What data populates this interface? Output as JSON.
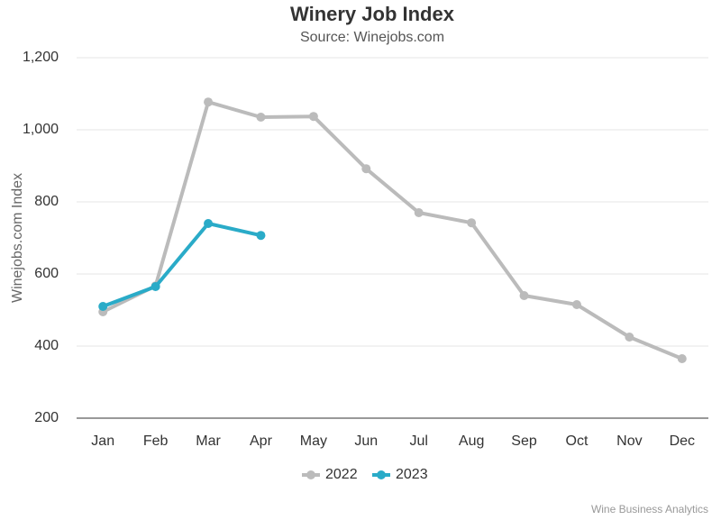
{
  "chart_data": {
    "type": "line",
    "title": "Winery Job Index",
    "subtitle": "Source: Winejobs.com",
    "y_label": "Winejobs.com Index",
    "credits": "Wine Business Analytics",
    "categories": [
      "Jan",
      "Feb",
      "Mar",
      "Apr",
      "May",
      "Jun",
      "Jul",
      "Aug",
      "Sep",
      "Oct",
      "Nov",
      "Dec"
    ],
    "series": [
      {
        "name": "2022",
        "color": "#bbbbbb",
        "values": [
          495,
          567,
          1077,
          1035,
          1037,
          892,
          770,
          742,
          540,
          515,
          425,
          365
        ]
      },
      {
        "name": "2023",
        "color": "#2aabc8",
        "values": [
          510,
          565,
          740,
          707,
          null,
          null,
          null,
          null,
          null,
          null,
          null,
          null
        ]
      }
    ],
    "ylim": [
      200,
      1200
    ],
    "yticks": [
      200,
      400,
      600,
      800,
      {
        "value": 1000,
        "label": "1,000"
      },
      {
        "value": 1200,
        "label": "1,200"
      }
    ],
    "grid": true,
    "legend": "bottom"
  }
}
